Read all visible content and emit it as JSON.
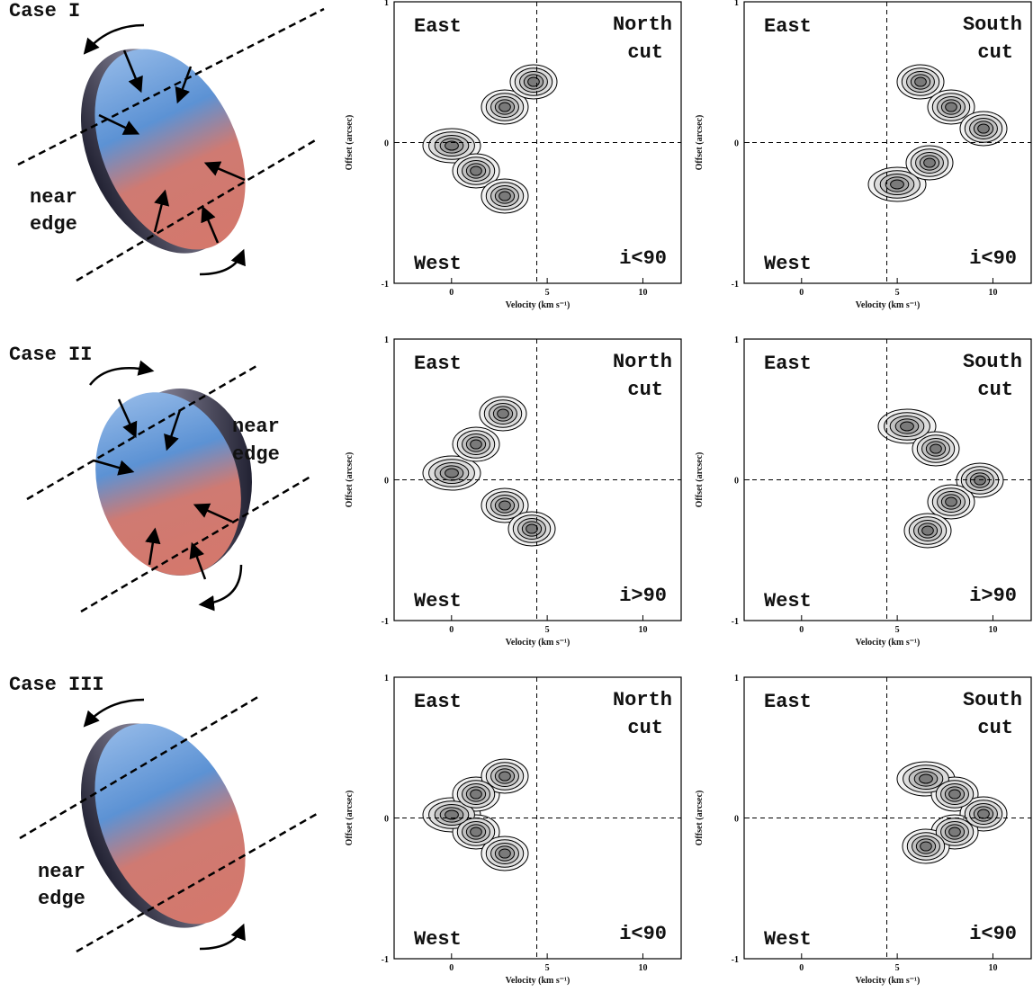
{
  "rows": [
    {
      "case": "Case I",
      "near_edge": [
        "near",
        "edge"
      ],
      "panels": [
        {
          "top_left": "East",
          "top_right": [
            "North",
            "cut"
          ],
          "bottom_left": "West",
          "bottom_right": "i<90"
        },
        {
          "top_left": "East",
          "top_right": [
            "South",
            "cut"
          ],
          "bottom_left": "West",
          "bottom_right": "i<90"
        }
      ]
    },
    {
      "case": "Case II",
      "near_edge": [
        "near",
        "edge"
      ],
      "panels": [
        {
          "top_left": "East",
          "top_right": [
            "North",
            "cut"
          ],
          "bottom_left": "West",
          "bottom_right": "i>90"
        },
        {
          "top_left": "East",
          "top_right": [
            "South",
            "cut"
          ],
          "bottom_left": "West",
          "bottom_right": "i>90"
        }
      ]
    },
    {
      "case": "Case III",
      "near_edge": [
        "near",
        "edge"
      ],
      "panels": [
        {
          "top_left": "East",
          "top_right": [
            "North",
            "cut"
          ],
          "bottom_left": "West",
          "bottom_right": "i<90"
        },
        {
          "top_left": "East",
          "top_right": [
            "South",
            "cut"
          ],
          "bottom_left": "West",
          "bottom_right": "i<90"
        }
      ]
    }
  ],
  "axes": {
    "xlabel": "Velocity (km s⁻¹)",
    "ylabel": "Offset (arcsec)",
    "xlim": [
      -3,
      12
    ],
    "xticks": [
      0,
      5,
      10
    ],
    "ylim": [
      -1,
      1
    ],
    "yticks": [
      -1,
      0,
      1
    ]
  }
}
